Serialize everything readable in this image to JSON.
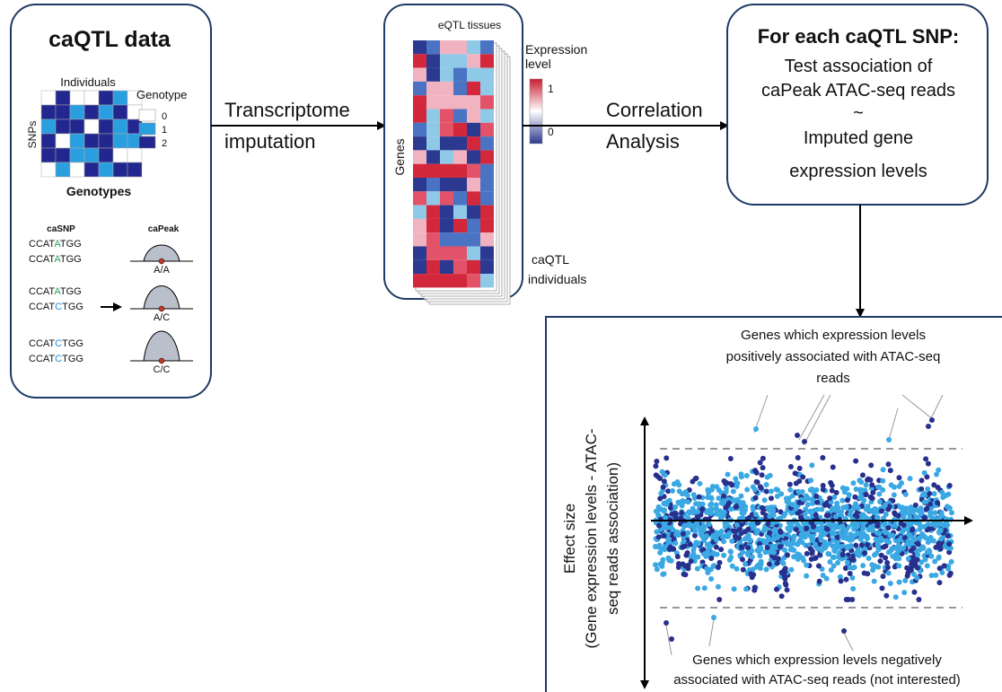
{
  "caqtl": {
    "title": "caQTL data",
    "genotype": {
      "x_label": "Individuals",
      "y_label": "SNPs",
      "legend_title": "Genotype",
      "legend": [
        "0",
        "1",
        "2"
      ],
      "caption": "Genotypes"
    },
    "peaks": {
      "snp_header": "caSNP",
      "peak_header": "caPeak",
      "rows": [
        {
          "seqs": [
            [
              "CCAT",
              "A",
              "TGG"
            ],
            [
              "CCAT",
              "A",
              "TGG"
            ]
          ],
          "allele": "A/A"
        },
        {
          "seqs": [
            [
              "CCAT",
              "A",
              "TGG"
            ],
            [
              "CCAT",
              "C",
              "TGG"
            ]
          ],
          "allele": "A/C"
        },
        {
          "seqs": [
            [
              "CCAT",
              "C",
              "TGG"
            ],
            [
              "CCAT",
              "C",
              "TGG"
            ]
          ],
          "allele": "C/C"
        }
      ]
    }
  },
  "step1": {
    "lines": [
      "Transcriptome",
      "imputation"
    ]
  },
  "imputation": {
    "top": "eQTL tissues",
    "y_label": "Genes",
    "legend_title": [
      "Expression",
      "level"
    ],
    "legend": [
      "1",
      "0"
    ],
    "bottom": [
      "caQTL",
      "individuals"
    ]
  },
  "step2": {
    "lines": [
      "Correlation",
      "Analysis"
    ]
  },
  "test": {
    "title": "For each caQTL SNP:",
    "lines": [
      "Test association of",
      "caPeak ATAC-seq reads",
      "~",
      "Imputed gene",
      "expression levels"
    ]
  },
  "plot": {
    "y_label": [
      "Effect size",
      "(Gene expression levels - ATAC-",
      "seq reads association)"
    ],
    "top_note": [
      "Genes which expression levels",
      "positively associated with ATAC-seq",
      "reads"
    ],
    "bottom_note": [
      "Genes which expression levels negatively",
      "associated with ATAC-seq reads (not interested)"
    ]
  }
}
